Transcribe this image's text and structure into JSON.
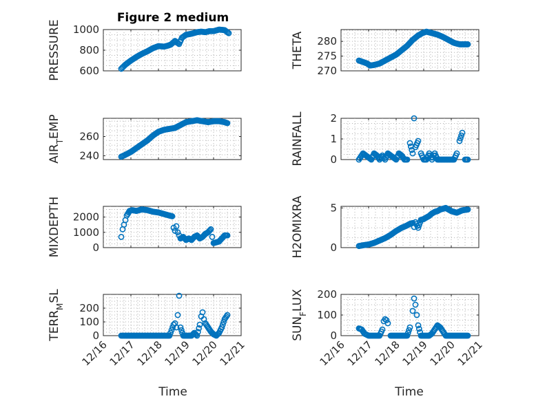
{
  "chart_data": {
    "type": "scatter",
    "title": "Figure 2 medium",
    "marker_color": "#0072BD",
    "x_ticks": [
      "12/16",
      "12/17",
      "12/18",
      "12/19",
      "12/20",
      "12/21"
    ],
    "x_range_days": [
      0,
      5
    ],
    "xlabel": "Time",
    "grid": true,
    "panels": [
      {
        "name": "pressure",
        "ylabel": "PRESSURE",
        "ylim": [
          600,
          1000
        ],
        "yticks": [
          600,
          800,
          1000
        ],
        "x": [
          0.65,
          0.8,
          1.0,
          1.2,
          1.4,
          1.6,
          1.8,
          2.0,
          2.2,
          2.35,
          2.45,
          2.6,
          2.75,
          2.85,
          3.0,
          3.2,
          3.4,
          3.55,
          3.7,
          3.85,
          4.0,
          4.2,
          4.4,
          4.55
        ],
        "y": [
          620,
          660,
          700,
          735,
          765,
          790,
          820,
          840,
          835,
          845,
          855,
          890,
          860,
          920,
          950,
          960,
          975,
          980,
          975,
          985,
          985,
          1000,
          995,
          965
        ]
      },
      {
        "name": "theta",
        "ylabel": "THETA",
        "ylim": [
          270,
          284
        ],
        "yticks": [
          270,
          275,
          280
        ],
        "x": [
          0.65,
          0.8,
          0.95,
          1.05,
          1.2,
          1.4,
          1.6,
          1.8,
          2.0,
          2.2,
          2.4,
          2.6,
          2.8,
          2.95,
          3.1,
          3.3,
          3.5,
          3.7,
          3.9,
          4.1,
          4.3,
          4.5,
          4.6
        ],
        "y": [
          273.5,
          273,
          272.5,
          271.8,
          272,
          272.5,
          273.5,
          274.5,
          275.5,
          277,
          278.5,
          280.5,
          282,
          282.8,
          283.3,
          282.8,
          282.3,
          281.5,
          280.5,
          279.5,
          279,
          279,
          279
        ]
      },
      {
        "name": "air_temp",
        "ylabel": "AIR_TEMP",
        "ylabel_main": "AIR",
        "ylabel_sub": "T",
        "ylabel_rest": "EMP",
        "ylim": [
          236,
          279
        ],
        "yticks": [
          240,
          260
        ],
        "x": [
          0.65,
          0.8,
          1.0,
          1.2,
          1.4,
          1.6,
          1.8,
          2.0,
          2.2,
          2.4,
          2.6,
          2.8,
          3.0,
          3.2,
          3.4,
          3.6,
          3.8,
          4.0,
          4.2,
          4.4,
          4.5
        ],
        "y": [
          239,
          241,
          244,
          248,
          252,
          256,
          261,
          265,
          267,
          268,
          269,
          272,
          275,
          276,
          277,
          276,
          275,
          276,
          276,
          275,
          274
        ]
      },
      {
        "name": "rainfall",
        "ylabel": "RAINFALL",
        "ylim": [
          0,
          2
        ],
        "yticks": [
          0,
          1,
          2
        ],
        "x": [
          0.65,
          0.8,
          0.9,
          1.0,
          1.1,
          1.2,
          1.3,
          1.4,
          1.5,
          1.6,
          1.7,
          1.8,
          1.9,
          2.0,
          2.1,
          2.2,
          2.3,
          2.4,
          2.5,
          2.6,
          2.65,
          2.7,
          2.8,
          2.9,
          3.0,
          3.1,
          3.2,
          3.3,
          3.4,
          3.5,
          3.6,
          3.7,
          3.8,
          3.9,
          4.0,
          4.1,
          4.2,
          4.3,
          4.4,
          4.5,
          4.6
        ],
        "y": [
          0,
          0.3,
          0.2,
          0.1,
          0,
          0.3,
          0.2,
          0,
          0.2,
          0,
          0.3,
          0.2,
          0.1,
          0,
          0.3,
          0.2,
          0,
          0,
          0.8,
          0.3,
          2.0,
          0.6,
          0.9,
          0.3,
          0,
          0,
          0.3,
          0,
          0.3,
          0,
          0,
          0,
          0,
          0,
          0,
          0,
          0.3,
          0.9,
          1.3,
          0,
          0
        ]
      },
      {
        "name": "mixdepth",
        "ylabel": "MIXDEPTH",
        "ylim": [
          0,
          2700
        ],
        "yticks": [
          0,
          1000,
          2000
        ],
        "x": [
          0.65,
          0.7,
          0.75,
          0.8,
          0.85,
          0.95,
          1.05,
          1.2,
          1.4,
          1.6,
          1.8,
          2.0,
          2.2,
          2.4,
          2.5,
          2.55,
          2.6,
          2.65,
          2.7,
          2.75,
          2.8,
          2.9,
          3.0,
          3.1,
          3.2,
          3.3,
          3.4,
          3.5,
          3.6,
          3.7,
          3.8,
          3.9,
          3.95,
          4.0,
          4.1,
          4.2,
          4.3,
          4.4,
          4.5
        ],
        "y": [
          700,
          1200,
          1500,
          1800,
          2100,
          2400,
          2450,
          2400,
          2500,
          2450,
          2350,
          2300,
          2200,
          2100,
          2050,
          1300,
          1100,
          1400,
          1000,
          800,
          600,
          700,
          500,
          600,
          500,
          700,
          800,
          600,
          700,
          900,
          1000,
          1200,
          700,
          300,
          350,
          400,
          600,
          800,
          800
        ]
      },
      {
        "name": "h2omixra",
        "ylabel": "H2OMIXRA",
        "ylim": [
          0,
          5.2
        ],
        "yticks": [
          0,
          5
        ],
        "x": [
          0.65,
          0.8,
          1.0,
          1.2,
          1.4,
          1.6,
          1.8,
          2.0,
          2.2,
          2.4,
          2.5,
          2.6,
          2.65,
          2.7,
          2.8,
          2.9,
          3.0,
          3.1,
          3.2,
          3.3,
          3.4,
          3.5,
          3.6,
          3.8,
          4.0,
          4.2,
          4.4,
          4.6
        ],
        "y": [
          0.2,
          0.3,
          0.4,
          0.6,
          0.9,
          1.2,
          1.6,
          2.1,
          2.5,
          2.8,
          3.0,
          3.1,
          2.6,
          3.2,
          2.5,
          3.5,
          3.6,
          3.8,
          4.0,
          4.3,
          4.5,
          4.6,
          4.8,
          5.0,
          4.6,
          4.4,
          4.7,
          4.8
        ]
      },
      {
        "name": "terr_msl",
        "ylabel": "TERR_MSL",
        "ylabel_main": "TERR",
        "ylabel_sub": "M",
        "ylabel_rest": "SL",
        "ylim": [
          0,
          300
        ],
        "yticks": [
          0,
          100,
          200
        ],
        "x": [
          0.65,
          0.8,
          1.0,
          1.2,
          1.4,
          1.6,
          1.8,
          2.0,
          2.2,
          2.4,
          2.55,
          2.6,
          2.65,
          2.7,
          2.75,
          2.8,
          2.9,
          3.0,
          3.1,
          3.2,
          3.3,
          3.4,
          3.5,
          3.55,
          3.6,
          3.65,
          3.7,
          3.8,
          3.9,
          4.0,
          4.1,
          4.2,
          4.3,
          4.4,
          4.5
        ],
        "y": [
          0,
          0,
          0,
          0,
          0,
          0,
          0,
          0,
          0,
          0,
          80,
          90,
          60,
          150,
          290,
          60,
          0,
          0,
          0,
          0,
          20,
          0,
          80,
          140,
          170,
          120,
          90,
          60,
          30,
          10,
          0,
          20,
          60,
          120,
          150
        ]
      },
      {
        "name": "sunflux",
        "ylabel": "SUN_FLUX",
        "ylabel_main": "SUN",
        "ylabel_sub": "F",
        "ylabel_rest": "LUX",
        "ylim": [
          0,
          200
        ],
        "yticks": [
          0,
          100,
          200
        ],
        "x": [
          0.65,
          0.75,
          0.85,
          1.0,
          1.2,
          1.3,
          1.4,
          1.5,
          1.55,
          1.6,
          1.65,
          1.7,
          1.8,
          2.0,
          2.2,
          2.4,
          2.5,
          2.6,
          2.65,
          2.7,
          2.75,
          2.8,
          2.9,
          3.0,
          3.1,
          3.2,
          3.3,
          3.4,
          3.5,
          3.6,
          3.8,
          4.0,
          4.2,
          4.4,
          4.6
        ],
        "y": [
          35,
          30,
          10,
          0,
          0,
          0,
          0,
          30,
          70,
          80,
          75,
          60,
          0,
          0,
          0,
          0,
          40,
          120,
          180,
          150,
          100,
          50,
          0,
          0,
          0,
          0,
          10,
          30,
          50,
          40,
          0,
          0,
          0,
          0,
          0
        ]
      }
    ]
  }
}
